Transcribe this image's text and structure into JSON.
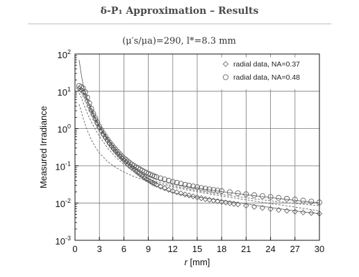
{
  "header": {
    "title": "δ-P₁ Approximation – Results",
    "subtitle": "(μ′s/μa)=290, l*=8.3 mm"
  },
  "chart_data": {
    "type": "scatter",
    "title": "δ-P₁ Approximation – Results",
    "subtitle": "(μ′s/μa)=290, l*=8.3 mm",
    "xlabel_prefix": "r",
    "xlabel_suffix": " [mm]",
    "ylabel": "Measured Irradiance",
    "xlim": [
      0,
      30
    ],
    "ylim": [
      0.001,
      100
    ],
    "yscale": "log",
    "xticks": [
      0,
      3,
      6,
      9,
      12,
      15,
      18,
      21,
      24,
      27,
      30
    ],
    "yticks": [
      {
        "value": 0.001,
        "base": "10",
        "exp": "-3"
      },
      {
        "value": 0.01,
        "base": "10",
        "exp": "-2"
      },
      {
        "value": 0.1,
        "base": "10",
        "exp": "-1"
      },
      {
        "value": 1,
        "base": "10",
        "exp": "0"
      },
      {
        "value": 10,
        "base": "10",
        "exp": "1"
      },
      {
        "value": 100,
        "base": "10",
        "exp": "2"
      }
    ],
    "grid": true,
    "legend_position": "top-right",
    "series": [
      {
        "name": "radial data, NA=0.37",
        "marker": "diamond",
        "x": [
          0.5,
          0.75,
          1,
          1.25,
          1.5,
          1.75,
          2,
          2.25,
          2.5,
          2.75,
          3,
          3.25,
          3.5,
          3.75,
          4,
          4.25,
          4.5,
          4.75,
          5,
          5.25,
          5.5,
          5.75,
          6,
          6.25,
          6.5,
          6.75,
          7,
          7.25,
          7.5,
          7.75,
          8,
          8.25,
          8.5,
          8.75,
          9,
          9.25,
          9.5,
          9.75,
          10,
          10.5,
          11,
          11.5,
          12,
          12.5,
          13,
          13.5,
          14,
          14.5,
          15,
          15.5,
          16,
          16.5,
          17,
          17.5,
          18,
          18.5,
          19,
          19.5,
          20,
          21,
          22,
          23,
          24,
          25,
          26,
          27,
          28,
          29,
          30
        ],
        "y": [
          12,
          11,
          9.5,
          7.5,
          5.5,
          4.0,
          3.0,
          2.3,
          1.75,
          1.35,
          1.05,
          0.85,
          0.68,
          0.56,
          0.47,
          0.39,
          0.33,
          0.28,
          0.24,
          0.21,
          0.18,
          0.16,
          0.14,
          0.125,
          0.11,
          0.098,
          0.088,
          0.079,
          0.071,
          0.064,
          0.058,
          0.053,
          0.048,
          0.044,
          0.041,
          0.038,
          0.035,
          0.033,
          0.031,
          0.0275,
          0.025,
          0.0228,
          0.021,
          0.0195,
          0.0182,
          0.017,
          0.016,
          0.0151,
          0.0143,
          0.0135,
          0.0128,
          0.0122,
          0.0117,
          0.0112,
          0.0107,
          0.0103,
          0.0099,
          0.0095,
          0.0092,
          0.0085,
          0.0079,
          0.0074,
          0.0069,
          0.0065,
          0.0062,
          0.0059,
          0.0056,
          0.0054,
          0.0052
        ]
      },
      {
        "name": "radial data, NA=0.48",
        "marker": "circle",
        "x": [
          0.5,
          0.75,
          1,
          1.25,
          1.5,
          1.75,
          2,
          2.25,
          2.5,
          2.75,
          3,
          3.25,
          3.5,
          3.75,
          4,
          4.25,
          4.5,
          4.75,
          5,
          5.25,
          5.5,
          5.75,
          6,
          6.25,
          6.5,
          6.75,
          7,
          7.25,
          7.5,
          7.75,
          8,
          8.25,
          8.5,
          8.75,
          9,
          9.25,
          9.5,
          9.75,
          10,
          10.5,
          11,
          11.5,
          12,
          12.5,
          13,
          13.5,
          14,
          14.5,
          15,
          15.5,
          16,
          16.5,
          17,
          17.5,
          18,
          19,
          20,
          21,
          22,
          23,
          24,
          25,
          26,
          27,
          28,
          29,
          30
        ],
        "y": [
          14,
          13,
          12,
          9.5,
          6.8,
          4.8,
          3.4,
          2.5,
          1.9,
          1.45,
          1.12,
          0.9,
          0.72,
          0.6,
          0.5,
          0.42,
          0.36,
          0.31,
          0.27,
          0.235,
          0.205,
          0.18,
          0.16,
          0.145,
          0.13,
          0.118,
          0.108,
          0.099,
          0.092,
          0.085,
          0.079,
          0.074,
          0.069,
          0.065,
          0.061,
          0.058,
          0.055,
          0.052,
          0.05,
          0.046,
          0.043,
          0.04,
          0.037,
          0.035,
          0.033,
          0.031,
          0.0295,
          0.028,
          0.0267,
          0.0255,
          0.0244,
          0.0234,
          0.0225,
          0.0217,
          0.021,
          0.0196,
          0.0184,
          0.0173,
          0.0163,
          0.0154,
          0.0146,
          0.0138,
          0.0131,
          0.0124,
          0.0117,
          0.011,
          0.0104
        ]
      }
    ],
    "model_curves": [
      {
        "style": "solid",
        "x": [
          0.5,
          0.75,
          1,
          1.5,
          2,
          2.5,
          3,
          4,
          5,
          6,
          7,
          8,
          9,
          10,
          12,
          14,
          16,
          18,
          20,
          22,
          24,
          26,
          28,
          30
        ],
        "y": [
          70,
          30,
          15,
          6.0,
          3.0,
          1.7,
          1.05,
          0.48,
          0.25,
          0.14,
          0.085,
          0.055,
          0.038,
          0.028,
          0.019,
          0.0155,
          0.0135,
          0.0118,
          0.0102,
          0.0088,
          0.0076,
          0.0066,
          0.0058,
          0.0052
        ]
      },
      {
        "style": "solid",
        "x": [
          0.5,
          0.75,
          1,
          1.5,
          2,
          2.5,
          3,
          4,
          5,
          6,
          7,
          8,
          9,
          10,
          12,
          14,
          16,
          18,
          20,
          22,
          24,
          26,
          28,
          30
        ],
        "y": [
          12,
          11,
          9.5,
          5.8,
          3.2,
          1.9,
          1.15,
          0.52,
          0.28,
          0.165,
          0.105,
          0.073,
          0.055,
          0.044,
          0.033,
          0.027,
          0.0232,
          0.0203,
          0.0178,
          0.0158,
          0.014,
          0.0125,
          0.0112,
          0.0101
        ]
      },
      {
        "style": "dashed",
        "x": [
          0.5,
          0.75,
          1,
          1.5,
          2,
          2.5,
          3,
          4,
          5,
          6,
          7,
          8,
          9,
          10,
          12,
          14,
          16,
          18,
          20,
          22,
          24,
          26,
          28,
          30
        ],
        "y": [
          9,
          7,
          5.0,
          2.6,
          1.5,
          0.95,
          0.62,
          0.3,
          0.17,
          0.108,
          0.075,
          0.056,
          0.045,
          0.038,
          0.029,
          0.0235,
          0.0198,
          0.017,
          0.0148,
          0.013,
          0.0115,
          0.0103,
          0.0093,
          0.0085
        ]
      },
      {
        "style": "dashed",
        "x": [
          0.5,
          0.75,
          1,
          1.5,
          2,
          2.5,
          3,
          4,
          5,
          6,
          7,
          8,
          9,
          10,
          12,
          14,
          16,
          18,
          20,
          22,
          24,
          26,
          28,
          30
        ],
        "y": [
          4.5,
          3.0,
          1.9,
          0.9,
          0.5,
          0.32,
          0.22,
          0.13,
          0.09,
          0.068,
          0.054,
          0.045,
          0.039,
          0.034,
          0.027,
          0.022,
          0.0183,
          0.0155,
          0.0132,
          0.0113,
          0.0097,
          0.0084,
          0.0072,
          0.0062
        ]
      }
    ]
  }
}
